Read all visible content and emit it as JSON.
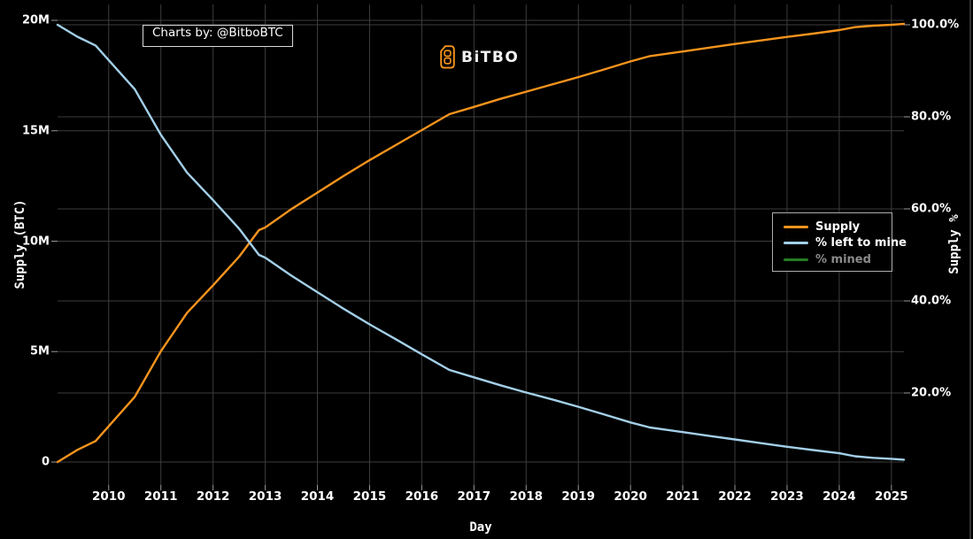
{
  "branding": {
    "charts_by": "Charts by: @BitboBTC",
    "logo_text": "BiTBO",
    "logo_symbol_icon": "bitbo-b-badge",
    "logo_color": "#f7941d"
  },
  "colors": {
    "background": "#000000",
    "gridline": "#3d3d3d",
    "tick_text": "#ffffff",
    "inactive_text": "#8a8a8a",
    "supply_orange": "#f7941d",
    "left_to_mine_blue": "#a3cfe8",
    "mined_green": "#237d23"
  },
  "chart_data": {
    "type": "line",
    "title": "",
    "grid": true,
    "x_axis": {
      "title": "Day",
      "range": [
        2009.02,
        2025.24
      ],
      "tick_values": [
        2010,
        2011,
        2012,
        2013,
        2014,
        2015,
        2016,
        2017,
        2018,
        2019,
        2020,
        2021,
        2022,
        2023,
        2024,
        2025
      ],
      "ticks": [
        "2010",
        "2011",
        "2012",
        "2013",
        "2014",
        "2015",
        "2016",
        "2017",
        "2018",
        "2019",
        "2020",
        "2021",
        "2022",
        "2023",
        "2024",
        "2025"
      ]
    },
    "y_axis_left": {
      "title": "Supply (BTC)",
      "unit": "BTC (millions)",
      "range": [
        0,
        20
      ],
      "tick_values": [
        0,
        5,
        10,
        15,
        20
      ],
      "ticks": [
        "0",
        "5M",
        "10M",
        "15M",
        "20M"
      ]
    },
    "y_axis_right": {
      "title": "Supply %",
      "unit": "percent of 21M cap",
      "range": [
        0,
        100
      ],
      "tick_values": [
        20,
        40,
        60,
        80,
        100
      ],
      "ticks": [
        "20.0%",
        "40.0%",
        "60.0%",
        "80.0%",
        "100.0%"
      ]
    },
    "series": [
      {
        "name": "Supply",
        "axis": "left",
        "color": "#f7941d",
        "hidden": false,
        "x": [
          2009.02,
          2009.4,
          2009.75,
          2010.0,
          2010.5,
          2011.0,
          2011.5,
          2012.0,
          2012.5,
          2012.88,
          2013.0,
          2013.5,
          2014.0,
          2014.5,
          2015.0,
          2015.5,
          2016.0,
          2016.53,
          2017.0,
          2017.5,
          2018.0,
          2018.5,
          2019.0,
          2019.5,
          2020.0,
          2020.37,
          2021.0,
          2021.5,
          2022.0,
          2022.5,
          2023.0,
          2023.5,
          2024.0,
          2024.3,
          2024.65,
          2025.0,
          2025.24
        ],
        "y": [
          0,
          0.55,
          0.95,
          1.62,
          2.95,
          5.02,
          6.75,
          8.0,
          9.3,
          10.5,
          10.62,
          11.45,
          12.2,
          12.95,
          13.67,
          14.35,
          15.03,
          15.75,
          16.08,
          16.44,
          16.77,
          17.1,
          17.43,
          17.78,
          18.14,
          18.38,
          18.59,
          18.76,
          18.93,
          19.09,
          19.25,
          19.4,
          19.56,
          19.69,
          19.76,
          19.8,
          19.84
        ]
      },
      {
        "name": "% left to mine",
        "axis": "right",
        "color": "#a3cfe8",
        "hidden": false,
        "x": [
          2009.02,
          2009.4,
          2009.75,
          2010.0,
          2010.5,
          2011.0,
          2011.5,
          2012.0,
          2012.5,
          2012.88,
          2013.0,
          2013.5,
          2014.0,
          2014.5,
          2015.0,
          2015.5,
          2016.0,
          2016.53,
          2017.0,
          2017.5,
          2018.0,
          2018.5,
          2019.0,
          2019.5,
          2020.0,
          2020.37,
          2021.0,
          2021.5,
          2022.0,
          2022.5,
          2023.0,
          2023.5,
          2024.0,
          2024.3,
          2024.65,
          2025.0,
          2025.24
        ],
        "y": [
          100,
          97.4,
          95.5,
          92.3,
          86.0,
          76.1,
          67.9,
          61.9,
          55.7,
          50.0,
          49.4,
          45.5,
          41.9,
          38.3,
          34.9,
          31.7,
          28.4,
          25.0,
          23.4,
          21.7,
          20.1,
          18.6,
          17.0,
          15.3,
          13.6,
          12.5,
          11.5,
          10.7,
          9.9,
          9.1,
          8.3,
          7.6,
          6.9,
          6.25,
          5.9,
          5.7,
          5.5
        ]
      },
      {
        "name": "% mined",
        "axis": "right",
        "color": "#237d23",
        "hidden": true,
        "x": [],
        "y": []
      }
    ],
    "legend": {
      "position": "right-middle",
      "items": [
        {
          "label": "Supply",
          "color": "#f7941d",
          "active": true
        },
        {
          "label": "% left to mine",
          "color": "#a3cfe8",
          "active": true
        },
        {
          "label": "% mined",
          "color": "#237d23",
          "active": false
        }
      ]
    }
  }
}
